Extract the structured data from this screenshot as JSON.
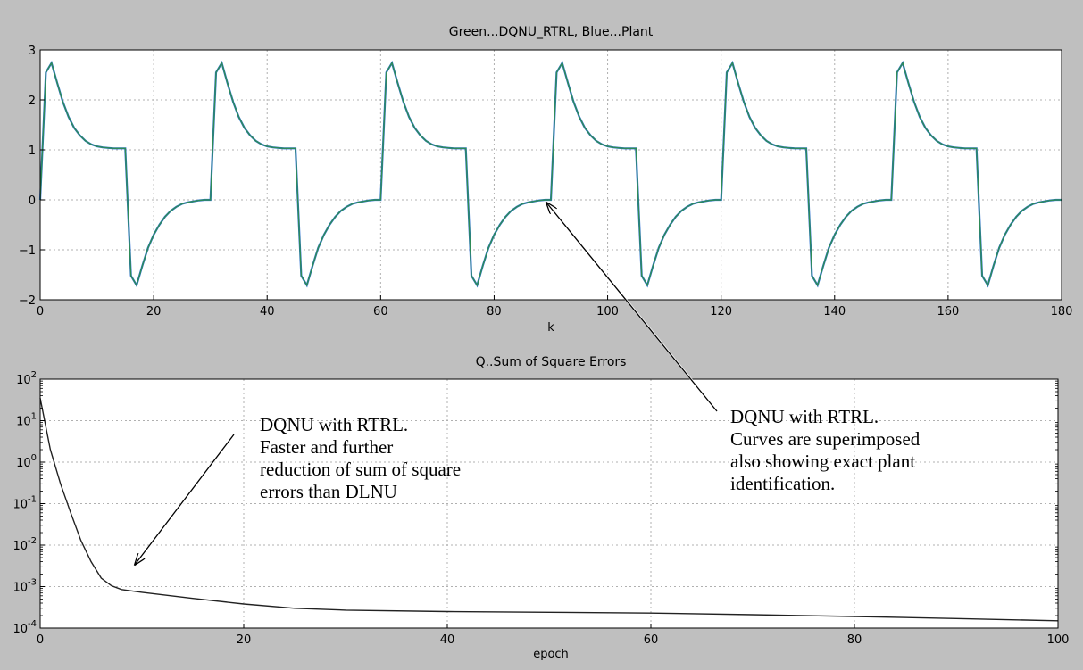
{
  "chart_data": [
    {
      "type": "line",
      "title": "Green...DQNU_RTRL, Blue...Plant",
      "xlabel": "k",
      "ylabel": "",
      "xlim": [
        0,
        180
      ],
      "ylim": [
        -2,
        3
      ],
      "xticks": [
        0,
        20,
        40,
        60,
        80,
        100,
        120,
        140,
        160,
        180
      ],
      "yticks": [
        -2,
        -1,
        0,
        1,
        2,
        3
      ],
      "ytick_labels": [
        "−2",
        "−1",
        "0",
        "1",
        "2",
        "3"
      ],
      "grid": true,
      "period": 30,
      "cycle_template": [
        0,
        2.55,
        2.74,
        2.34,
        1.96,
        1.66,
        1.44,
        1.29,
        1.18,
        1.11,
        1.07,
        1.05,
        1.04,
        1.03,
        1.03,
        1.03,
        -1.52,
        -1.71,
        -1.32,
        -0.96,
        -0.7,
        -0.5,
        -0.34,
        -0.22,
        -0.14,
        -0.08,
        -0.05,
        -0.03,
        -0.01,
        0,
        0
      ],
      "series": [
        {
          "color": "#2b6fd6"
        },
        {
          "color": "#2e8b57"
        }
      ]
    },
    {
      "type": "line",
      "title": "Q..Sum of Square Errors",
      "xlabel": "epoch",
      "ylabel": "",
      "xlim": [
        0,
        100
      ],
      "ylim": [
        0.0001,
        100
      ],
      "yscale": "log",
      "xticks": [
        0,
        20,
        40,
        60,
        80,
        100
      ],
      "yticks": [
        {
          "base": "10",
          "exp": "2"
        },
        {
          "base": "10",
          "exp": "1"
        },
        {
          "base": "10",
          "exp": "0"
        },
        {
          "base": "10",
          "exp": "-1"
        },
        {
          "base": "10",
          "exp": "-2"
        },
        {
          "base": "10",
          "exp": "-3"
        },
        {
          "base": "10",
          "exp": "-4"
        }
      ],
      "grid": true,
      "series": [
        {
          "color": "#222222",
          "x": [
            0,
            1,
            2,
            3,
            4,
            5,
            6,
            7,
            8,
            10,
            15,
            20,
            25,
            30,
            40,
            50,
            60,
            70,
            80,
            90,
            100
          ],
          "y": [
            35,
            2,
            0.3,
            0.06,
            0.013,
            0.004,
            0.0016,
            0.00105,
            0.00085,
            0.00073,
            0.00052,
            0.00038,
            0.0003,
            0.00027,
            0.00025,
            0.00024,
            0.00023,
            0.00021,
            0.00019,
            0.00017,
            0.00015
          ]
        }
      ]
    }
  ],
  "annotations": {
    "bottom_left_text": "DQNU with RTRL.\nFaster and further\nreduction of sum of square\nerrors than DLNU",
    "right_text": "DQNU with RTRL.\nCurves are superimposed\nalso showing exact plant\nidentification."
  }
}
